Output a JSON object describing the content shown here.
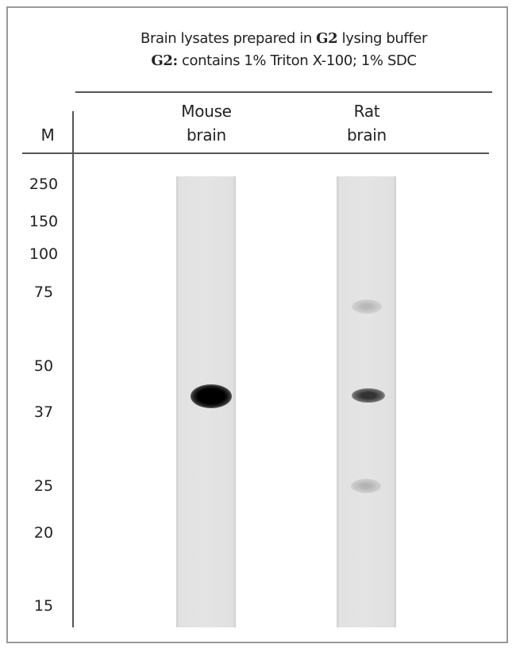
{
  "title": {
    "line1_pre": "Brain lysates prepared in ",
    "line1_bold": "G2",
    "line1_post": " lysing buffer",
    "line2_bold": "G2:",
    "line2_post": " contains 1% Triton X-100; 1% SDC"
  },
  "marker_header": "M",
  "lanes": [
    {
      "line1": "Mouse",
      "line2": "brain",
      "bands_kda": [
        {
          "kda": 42,
          "intensity": "strong"
        }
      ]
    },
    {
      "line1": "Rat",
      "line2": "brain",
      "bands_kda": [
        {
          "kda": 68,
          "intensity": "faint"
        },
        {
          "kda": 42,
          "intensity": "medium"
        },
        {
          "kda": 25,
          "intensity": "faint"
        }
      ]
    }
  ],
  "markers": [
    "250",
    "150",
    "100",
    "75",
    "50",
    "37",
    "25",
    "20",
    "15"
  ]
}
